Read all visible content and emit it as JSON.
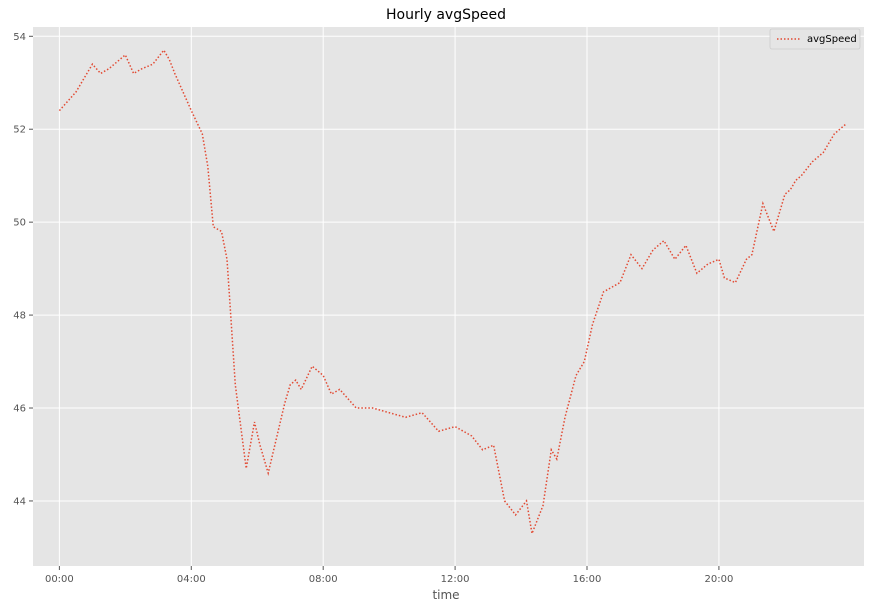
{
  "chart_data": {
    "type": "line",
    "title": "Hourly avgSpeed",
    "xlabel": "time",
    "ylabel": "",
    "xlim_hours": [
      -0.8,
      24.4
    ],
    "ylim": [
      42.6,
      54.2
    ],
    "x_ticks": [
      {
        "value": 0,
        "label": "00:00"
      },
      {
        "value": 4,
        "label": "04:00"
      },
      {
        "value": 8,
        "label": "08:00"
      },
      {
        "value": 12,
        "label": "12:00"
      },
      {
        "value": 16,
        "label": "16:00"
      },
      {
        "value": 20,
        "label": "20:00"
      }
    ],
    "y_ticks": [
      {
        "value": 44,
        "label": "44"
      },
      {
        "value": 46,
        "label": "46"
      },
      {
        "value": 48,
        "label": "48"
      },
      {
        "value": 50,
        "label": "50"
      },
      {
        "value": 52,
        "label": "52"
      },
      {
        "value": 54,
        "label": "54"
      }
    ],
    "grid": true,
    "legend_position": "top-right",
    "background_color": "#e5e5e5",
    "series": [
      {
        "name": "avgSpeed",
        "color": "#e24a33",
        "line_style": "dotted",
        "x": [
          "00:00",
          "00:30",
          "01:00",
          "01:15",
          "01:30",
          "02:00",
          "02:15",
          "02:30",
          "02:50",
          "03:10",
          "03:20",
          "03:30",
          "04:00",
          "04:20",
          "04:30",
          "04:40",
          "04:55",
          "05:05",
          "05:10",
          "05:20",
          "05:40",
          "05:55",
          "06:05",
          "06:20",
          "06:50",
          "07:00",
          "07:10",
          "07:20",
          "07:40",
          "08:00",
          "08:15",
          "08:30",
          "08:45",
          "09:00",
          "09:30",
          "10:00",
          "10:30",
          "11:00",
          "11:30",
          "12:00",
          "12:30",
          "12:50",
          "13:10",
          "13:30",
          "13:50",
          "14:10",
          "14:20",
          "14:40",
          "14:55",
          "15:05",
          "15:20",
          "15:40",
          "15:55",
          "16:10",
          "16:30",
          "17:00",
          "17:20",
          "17:40",
          "18:00",
          "18:20",
          "18:40",
          "19:00",
          "19:20",
          "19:40",
          "20:00",
          "20:10",
          "20:30",
          "20:50",
          "21:00",
          "21:20",
          "21:40",
          "22:00",
          "22:10",
          "22:20",
          "22:30",
          "22:50",
          "23:10",
          "23:30",
          "23:50"
        ],
        "values": [
          52.4,
          52.8,
          53.4,
          53.2,
          53.3,
          53.6,
          53.2,
          53.3,
          53.4,
          53.7,
          53.5,
          53.2,
          52.4,
          51.9,
          51.2,
          49.9,
          49.8,
          49.2,
          48.3,
          46.5,
          44.7,
          45.7,
          45.2,
          44.6,
          46.1,
          46.5,
          46.6,
          46.4,
          46.9,
          46.7,
          46.3,
          46.4,
          46.2,
          46.0,
          46.0,
          45.9,
          45.8,
          45.9,
          45.5,
          45.6,
          45.4,
          45.1,
          45.2,
          44.0,
          43.7,
          44.0,
          43.3,
          43.9,
          45.1,
          44.9,
          45.8,
          46.7,
          47.0,
          47.8,
          48.5,
          48.7,
          49.3,
          49.0,
          49.4,
          49.6,
          49.2,
          49.5,
          48.9,
          49.1,
          49.2,
          48.8,
          48.7,
          49.2,
          49.3,
          50.4,
          49.8,
          50.6,
          50.7,
          50.9,
          51.0,
          51.3,
          51.5,
          51.9,
          52.1
        ]
      }
    ]
  }
}
